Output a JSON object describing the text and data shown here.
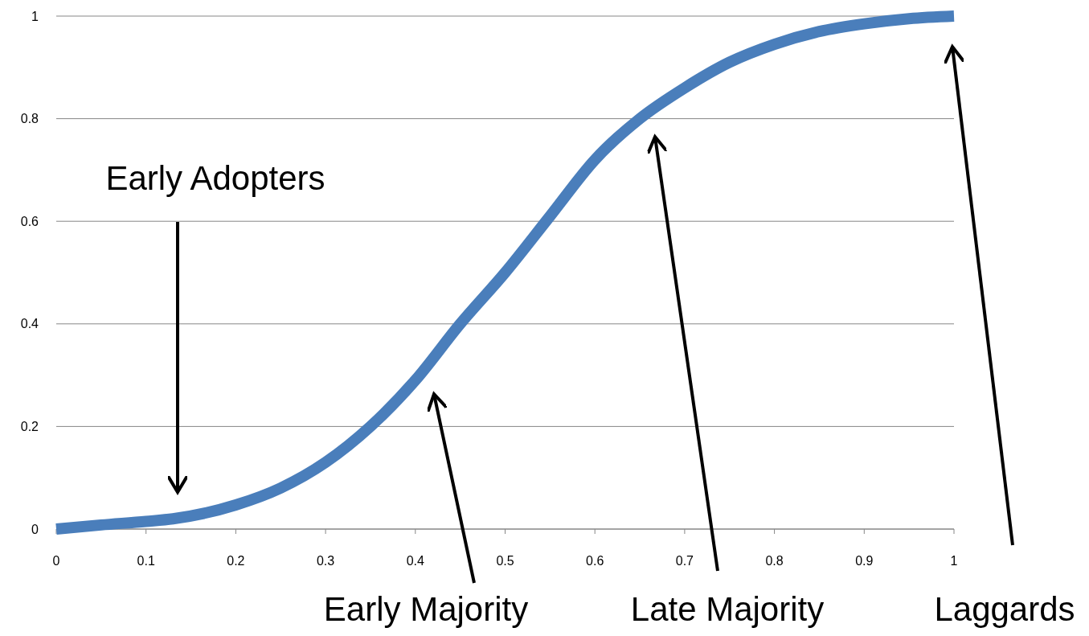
{
  "chart_data": {
    "type": "line",
    "x": [
      0,
      0.05,
      0.1,
      0.13,
      0.2,
      0.25,
      0.3,
      0.35,
      0.4,
      0.45,
      0.5,
      0.55,
      0.6,
      0.65,
      0.7,
      0.75,
      0.8,
      0.85,
      0.9,
      0.95,
      1
    ],
    "series": [
      {
        "color": "#4a7ebb",
        "values": [
          0,
          0.008,
          0.015,
          0.02,
          0.047,
          0.08,
          0.13,
          0.2,
          0.29,
          0.4,
          0.5,
          0.61,
          0.72,
          0.8,
          0.86,
          0.91,
          0.945,
          0.97,
          0.985,
          0.995,
          1
        ]
      }
    ],
    "xlim": [
      0,
      1
    ],
    "ylim": [
      0,
      1
    ],
    "xticks": [
      0,
      0.1,
      0.2,
      0.3,
      0.4,
      0.5,
      0.6,
      0.7,
      0.8,
      0.9,
      1
    ],
    "yticks": [
      0,
      0.2,
      0.4,
      0.6,
      0.8,
      1
    ],
    "grid": "y",
    "marker": "none",
    "line_style": "solid",
    "annotations": [
      "Early Adopters",
      "Early Majority",
      "Late Majority",
      "Laggards"
    ]
  }
}
